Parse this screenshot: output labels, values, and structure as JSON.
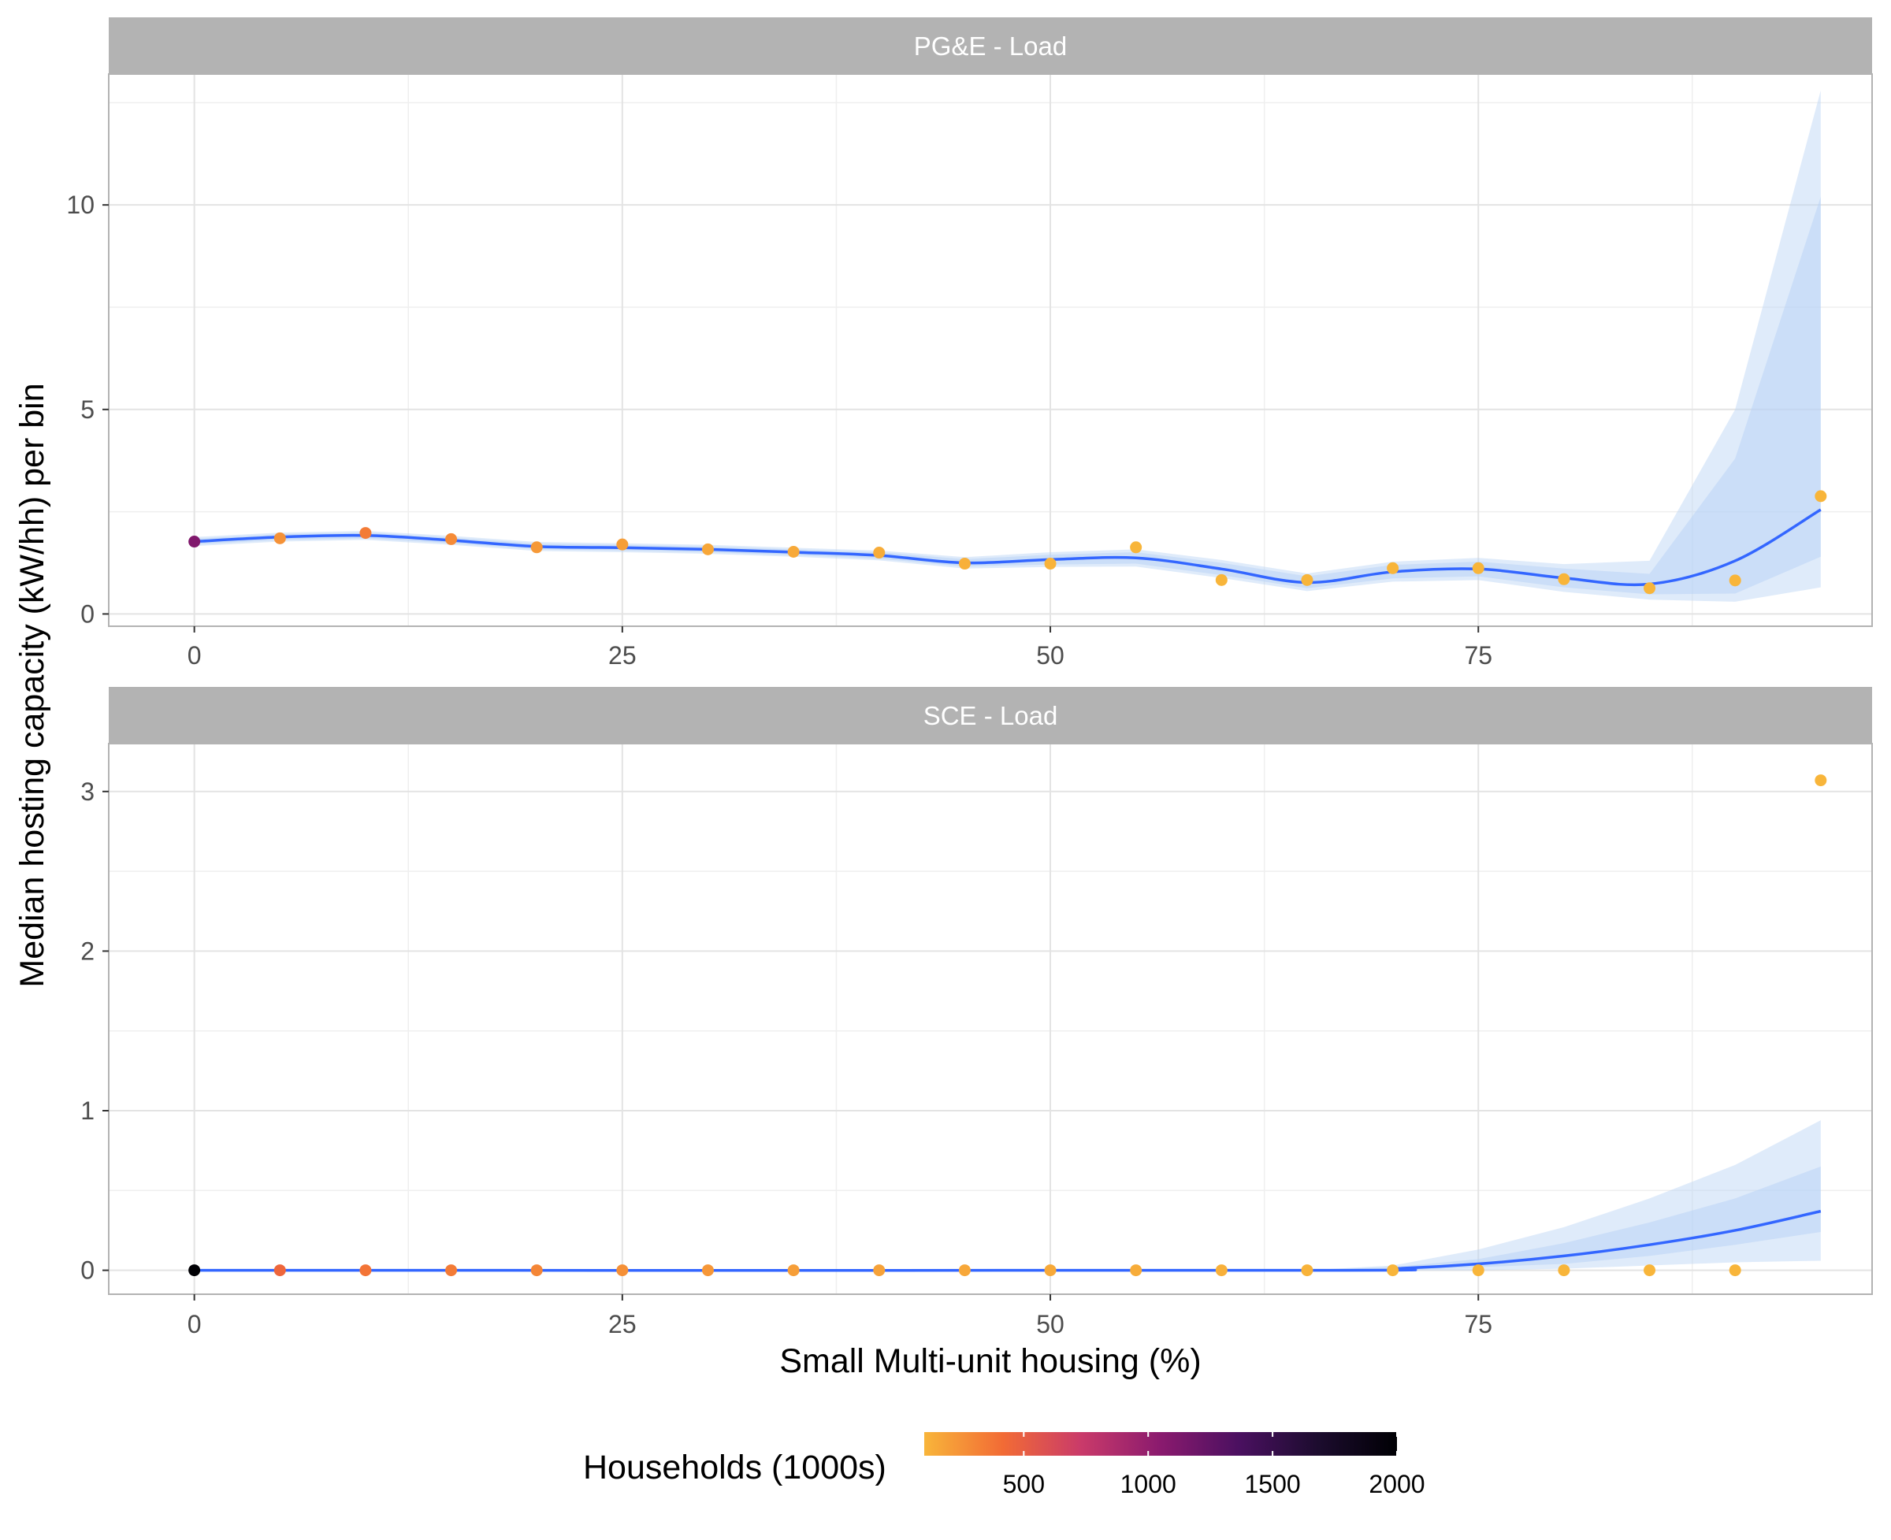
{
  "chart_data": {
    "type": "scatter",
    "xlabel": "Small Multi-unit housing (%)",
    "ylabel": "Median hosting capacity (kW/hh) per bin",
    "x_ticks": [
      "0",
      "25",
      "50",
      "75"
    ],
    "x_range": [
      -5,
      98
    ],
    "grid": true,
    "legend": {
      "title": "Households (1000s)",
      "position": "bottom",
      "ticks": [
        "500",
        "1000",
        "1500",
        "2000"
      ],
      "tick_values": [
        500,
        1000,
        1500,
        2000
      ],
      "range": [
        100,
        2000
      ],
      "colors": [
        "#f8b53a",
        "#f26b35",
        "#c93a6a",
        "#8a1a6e",
        "#4a1060",
        "#1c0c2e",
        "#000004"
      ]
    },
    "colors": {
      "smooth_line": "#3366ff",
      "ribbon": "#b9d3f5",
      "strip": "#b3b3b3",
      "grid": "#e3e3e3"
    },
    "panels": [
      {
        "title": "PG&E - Load",
        "ylim": [
          -0.3,
          13.2
        ],
        "y_ticks": [
          "0",
          "5",
          "10"
        ],
        "y_tick_values": [
          0,
          5,
          10
        ],
        "points": [
          {
            "x": 0,
            "y": 1.77,
            "households": 1100
          },
          {
            "x": 5,
            "y": 1.85,
            "households": 250
          },
          {
            "x": 10,
            "y": 1.98,
            "households": 350
          },
          {
            "x": 15,
            "y": 1.83,
            "households": 280
          },
          {
            "x": 20,
            "y": 1.63,
            "households": 220
          },
          {
            "x": 25,
            "y": 1.7,
            "households": 200
          },
          {
            "x": 30,
            "y": 1.58,
            "households": 160
          },
          {
            "x": 35,
            "y": 1.52,
            "households": 150
          },
          {
            "x": 40,
            "y": 1.5,
            "households": 140
          },
          {
            "x": 45,
            "y": 1.23,
            "households": 120
          },
          {
            "x": 50,
            "y": 1.23,
            "households": 110
          },
          {
            "x": 55,
            "y": 1.63,
            "households": 100
          },
          {
            "x": 60,
            "y": 0.83,
            "households": 100
          },
          {
            "x": 65,
            "y": 0.83,
            "households": 100
          },
          {
            "x": 70,
            "y": 1.12,
            "households": 100
          },
          {
            "x": 75,
            "y": 1.12,
            "households": 100
          },
          {
            "x": 80,
            "y": 0.85,
            "households": 100
          },
          {
            "x": 85,
            "y": 0.63,
            "households": 100
          },
          {
            "x": 90,
            "y": 0.82,
            "households": 100
          },
          {
            "x": 95,
            "y": 2.88,
            "households": 100
          }
        ],
        "smooth": [
          {
            "x": 0,
            "y": 1.77,
            "lo": 1.7,
            "hi": 1.84,
            "lo2": 1.66,
            "hi2": 1.88
          },
          {
            "x": 5,
            "y": 1.88,
            "lo": 1.81,
            "hi": 1.95,
            "lo2": 1.77,
            "hi2": 1.99
          },
          {
            "x": 10,
            "y": 1.92,
            "lo": 1.85,
            "hi": 1.99,
            "lo2": 1.81,
            "hi2": 2.03
          },
          {
            "x": 15,
            "y": 1.8,
            "lo": 1.73,
            "hi": 1.87,
            "lo2": 1.69,
            "hi2": 1.91
          },
          {
            "x": 20,
            "y": 1.65,
            "lo": 1.58,
            "hi": 1.72,
            "lo2": 1.54,
            "hi2": 1.76
          },
          {
            "x": 25,
            "y": 1.62,
            "lo": 1.55,
            "hi": 1.69,
            "lo2": 1.51,
            "hi2": 1.73
          },
          {
            "x": 30,
            "y": 1.58,
            "lo": 1.51,
            "hi": 1.65,
            "lo2": 1.47,
            "hi2": 1.69
          },
          {
            "x": 35,
            "y": 1.51,
            "lo": 1.44,
            "hi": 1.58,
            "lo2": 1.4,
            "hi2": 1.62
          },
          {
            "x": 40,
            "y": 1.43,
            "lo": 1.35,
            "hi": 1.51,
            "lo2": 1.31,
            "hi2": 1.55
          },
          {
            "x": 45,
            "y": 1.25,
            "lo": 1.16,
            "hi": 1.34,
            "lo2": 1.11,
            "hi2": 1.39
          },
          {
            "x": 50,
            "y": 1.33,
            "lo": 1.21,
            "hi": 1.45,
            "lo2": 1.15,
            "hi2": 1.51
          },
          {
            "x": 55,
            "y": 1.37,
            "lo": 1.23,
            "hi": 1.51,
            "lo2": 1.16,
            "hi2": 1.58
          },
          {
            "x": 60,
            "y": 1.1,
            "lo": 0.95,
            "hi": 1.25,
            "lo2": 0.88,
            "hi2": 1.32
          },
          {
            "x": 65,
            "y": 0.77,
            "lo": 0.63,
            "hi": 0.92,
            "lo2": 0.56,
            "hi2": 0.99
          },
          {
            "x": 70,
            "y": 1.03,
            "lo": 0.87,
            "hi": 1.2,
            "lo2": 0.79,
            "hi2": 1.28
          },
          {
            "x": 75,
            "y": 1.1,
            "lo": 0.92,
            "hi": 1.28,
            "lo2": 0.83,
            "hi2": 1.37
          },
          {
            "x": 80,
            "y": 0.88,
            "lo": 0.65,
            "hi": 1.11,
            "lo2": 0.54,
            "hi2": 1.22
          },
          {
            "x": 85,
            "y": 0.73,
            "lo": 0.48,
            "hi": 0.98,
            "lo2": 0.35,
            "hi2": 1.3
          },
          {
            "x": 90,
            "y": 1.3,
            "lo": 0.5,
            "hi": 3.8,
            "lo2": 0.3,
            "hi2": 5.0
          },
          {
            "x": 95,
            "y": 2.55,
            "lo": 1.4,
            "hi": 10.2,
            "lo2": 0.65,
            "hi2": 12.8
          }
        ]
      },
      {
        "title": "SCE - Load",
        "ylim": [
          -0.15,
          3.3
        ],
        "y_ticks": [
          "0",
          "1",
          "2",
          "3"
        ],
        "y_tick_values": [
          0,
          1,
          2,
          3
        ],
        "points": [
          {
            "x": 0,
            "y": 0.0,
            "households": 2000
          },
          {
            "x": 5,
            "y": 0.0,
            "households": 450
          },
          {
            "x": 10,
            "y": 0.0,
            "households": 380
          },
          {
            "x": 15,
            "y": 0.0,
            "households": 350
          },
          {
            "x": 20,
            "y": 0.0,
            "households": 300
          },
          {
            "x": 25,
            "y": 0.0,
            "households": 260
          },
          {
            "x": 30,
            "y": 0.0,
            "households": 230
          },
          {
            "x": 35,
            "y": 0.0,
            "households": 200
          },
          {
            "x": 40,
            "y": 0.0,
            "households": 180
          },
          {
            "x": 45,
            "y": 0.0,
            "households": 160
          },
          {
            "x": 50,
            "y": 0.0,
            "households": 150
          },
          {
            "x": 55,
            "y": 0.0,
            "households": 140
          },
          {
            "x": 60,
            "y": 0.0,
            "households": 120
          },
          {
            "x": 65,
            "y": 0.0,
            "households": 110
          },
          {
            "x": 70,
            "y": 0.0,
            "households": 100
          },
          {
            "x": 75,
            "y": 0.0,
            "households": 100
          },
          {
            "x": 80,
            "y": 0.0,
            "households": 100
          },
          {
            "x": 85,
            "y": 0.0,
            "households": 100
          },
          {
            "x": 90,
            "y": 0.0,
            "households": 100
          },
          {
            "x": 95,
            "y": 3.07,
            "households": 100
          }
        ],
        "smooth": [
          {
            "x": 0,
            "y": 0.0,
            "lo": 0.0,
            "hi": 0.0,
            "lo2": 0.0,
            "hi2": 0.0
          },
          {
            "x": 65,
            "y": 0.0,
            "lo": 0.0,
            "hi": 0.0,
            "lo2": 0.0,
            "hi2": 0.0
          },
          {
            "x": 70,
            "y": 0.01,
            "lo": 0.0,
            "hi": 0.02,
            "lo2": 0.0,
            "hi2": 0.03
          },
          {
            "x": 75,
            "y": 0.04,
            "lo": 0.02,
            "hi": 0.07,
            "lo2": 0.0,
            "hi2": 0.13
          },
          {
            "x": 80,
            "y": 0.09,
            "lo": 0.04,
            "hi": 0.17,
            "lo2": 0.01,
            "hi2": 0.27
          },
          {
            "x": 85,
            "y": 0.16,
            "lo": 0.09,
            "hi": 0.3,
            "lo2": 0.03,
            "hi2": 0.45
          },
          {
            "x": 90,
            "y": 0.25,
            "lo": 0.16,
            "hi": 0.45,
            "lo2": 0.05,
            "hi2": 0.66
          },
          {
            "x": 95,
            "y": 0.37,
            "lo": 0.24,
            "hi": 0.65,
            "lo2": 0.06,
            "hi2": 0.94
          }
        ]
      }
    ]
  }
}
